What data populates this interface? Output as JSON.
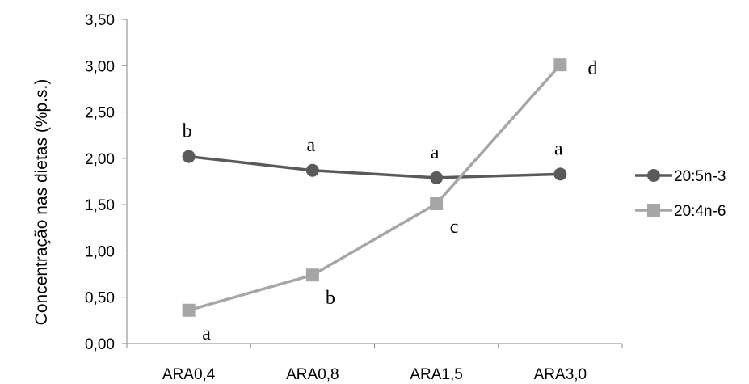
{
  "chart_data": {
    "type": "line",
    "title": "",
    "xlabel": "",
    "ylabel": "Concentração nas dietas (%p.s.)",
    "categories": [
      "ARA0,4",
      "ARA0,8",
      "ARA1,5",
      "ARA3,0"
    ],
    "ylim": [
      0,
      3.5
    ],
    "yticks": [
      "0,00",
      "0,50",
      "1,00",
      "1,50",
      "2,00",
      "2,50",
      "3,00",
      "3,50"
    ],
    "grid": false,
    "legend_position": "right",
    "series": [
      {
        "name": "20:5n-3",
        "marker": "circle",
        "color": "#5a5a5a",
        "values": [
          2.02,
          1.87,
          1.79,
          1.83
        ],
        "annotations": [
          "b",
          "a",
          "a",
          "a"
        ]
      },
      {
        "name": "20:4n-6",
        "marker": "square",
        "color": "#a6a6a6",
        "values": [
          0.36,
          0.74,
          1.51,
          3.01
        ],
        "annotations": [
          "a",
          "b",
          "c",
          "d"
        ]
      }
    ]
  }
}
